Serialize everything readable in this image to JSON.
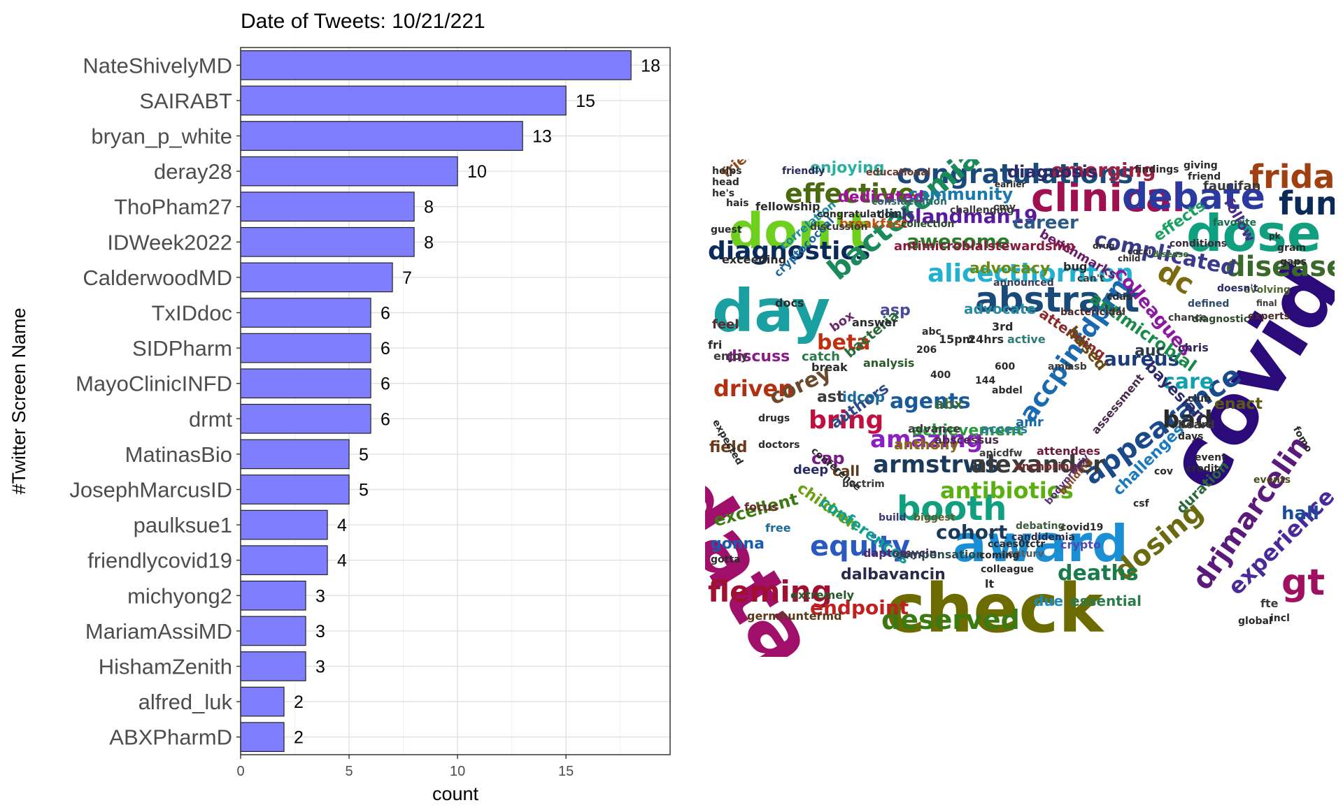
{
  "chart_data": [
    {
      "type": "bar",
      "orientation": "horizontal",
      "title": "Date of Tweets: 10/21/221",
      "xlabel": "count",
      "ylabel": "#Twitter Screen Name",
      "xlim": [
        0,
        19.8
      ],
      "xticks": [
        0,
        5,
        10,
        15
      ],
      "grid": true,
      "bar_color": "#7777ff",
      "categories": [
        "NateShivelyMD",
        "SAIRABT",
        "bryan_p_white",
        "deray28",
        "ThoPham27",
        "IDWeek2022",
        "CalderwoodMD",
        "TxIDdoc",
        "SIDPharm",
        "MayoClinicINFD",
        "drmt",
        "MatinasBio",
        "JosephMarcusID",
        "paulksue1",
        "friendlycovid19",
        "michyong2",
        "MariamAssiMD",
        "HishamZenith",
        "alfred_luk",
        "ABXPharmD"
      ],
      "values": [
        18,
        15,
        13,
        10,
        8,
        8,
        7,
        6,
        6,
        6,
        6,
        5,
        5,
        4,
        4,
        3,
        3,
        3,
        2,
        2
      ]
    },
    {
      "type": "wordcloud",
      "words": [
        {
          "text": "data",
          "color": "#a0106a"
        },
        {
          "text": "covid",
          "color": "#2b0a7a"
        },
        {
          "text": "check",
          "color": "#6b6b00"
        },
        {
          "text": "award",
          "color": "#1a8fd6"
        },
        {
          "text": "day",
          "color": "#1aa0a0"
        },
        {
          "text": "don't",
          "color": "#6fcf1f"
        },
        {
          "text": "dose",
          "color": "#10a080"
        },
        {
          "text": "clinical",
          "color": "#a01050"
        },
        {
          "text": "debate",
          "color": "#2a3aa0"
        },
        {
          "text": "congratulations",
          "color": "#1a4a7a"
        },
        {
          "text": "friday",
          "color": "#a04010"
        },
        {
          "text": "fun",
          "color": "#0a2a5a"
        },
        {
          "text": "diagnostics",
          "color": "#0a2a5a"
        },
        {
          "text": "bacteremia",
          "color": "#1a8a5a"
        },
        {
          "text": "abstract",
          "color": "#1a4a7a"
        },
        {
          "text": "alicecthornton",
          "color": "#20b0d0"
        },
        {
          "text": "disease",
          "color": "#3a6a2a"
        },
        {
          "text": "effective",
          "color": "#4a6a10"
        },
        {
          "text": "booth",
          "color": "#10a080"
        },
        {
          "text": "equity",
          "color": "#2a5ac0"
        },
        {
          "text": "fleming",
          "color": "#a01030"
        },
        {
          "text": "deserved",
          "color": "#3a7a10"
        },
        {
          "text": "appearance",
          "color": "#1a4a8a"
        },
        {
          "text": "dosing",
          "color": "#6a6a10"
        },
        {
          "text": "drjmarcelin",
          "color": "#5a1a7a"
        },
        {
          "text": "gt",
          "color": "#a01060"
        },
        {
          "text": "experience",
          "color": "#4a2a9a"
        },
        {
          "text": "accpinfdprn",
          "color": "#1a6ab0"
        },
        {
          "text": "armstrws",
          "color": "#1a3a5a"
        },
        {
          "text": "alexander",
          "color": "#3a3a3a"
        },
        {
          "text": "antibiotics",
          "color": "#5ab010"
        },
        {
          "text": "amazing",
          "color": "#8a20c0"
        },
        {
          "text": "bring",
          "color": "#c01040"
        },
        {
          "text": "agents",
          "color": "#1a5a9a"
        },
        {
          "text": "driven",
          "color": "#b03010"
        },
        {
          "text": "corey",
          "color": "#6a4a2a"
        },
        {
          "text": "cohort",
          "color": "#1a3a5a"
        },
        {
          "text": "deaths",
          "color": "#1a7a4a"
        },
        {
          "text": "endpoint",
          "color": "#c02020"
        },
        {
          "text": "bad",
          "color": "#2a2a2a"
        },
        {
          "text": "care",
          "color": "#10a0b0"
        },
        {
          "text": "aureus",
          "color": "#1a3a7a"
        },
        {
          "text": "emerging",
          "color": "#a02040"
        },
        {
          "text": "blandman19",
          "color": "#5a1aa0"
        },
        {
          "text": "awesome",
          "color": "#2a7a2a"
        },
        {
          "text": "complicated",
          "color": "#3a3a8a"
        },
        {
          "text": "beta",
          "color": "#c03010"
        },
        {
          "text": "dc",
          "color": "#7a6a10"
        },
        {
          "text": "career",
          "color": "#2a5a8a"
        },
        {
          "text": "colleagues",
          "color": "#8a1aa0"
        },
        {
          "text": "community",
          "color": "#1a7ab0"
        },
        {
          "text": "diagnosis",
          "color": "#2a2a6a"
        },
        {
          "text": "dedicated",
          "color": "#a010a0"
        },
        {
          "text": "enjoying",
          "color": "#2ab0a0"
        },
        {
          "text": "antimicrobial",
          "color": "#1a8a4a"
        },
        {
          "text": "advocacy",
          "color": "#6a8a10"
        },
        {
          "text": "achievement",
          "color": "#2a9a3a"
        },
        {
          "text": "bayesian",
          "color": "#2a2a6a"
        },
        {
          "text": "authors",
          "color": "#2a4a8a"
        },
        {
          "text": "children",
          "color": "#6aa010"
        },
        {
          "text": "conferences",
          "color": "#10a090"
        },
        {
          "text": "dalbavancin",
          "color": "#2a2a4a"
        },
        {
          "text": "excellent",
          "color": "#3a7a10"
        },
        {
          "text": "gonna",
          "color": "#1a5ab0"
        },
        {
          "text": "hall",
          "color": "#1a4a9a"
        },
        {
          "text": "challenges",
          "color": "#1a7ac0"
        },
        {
          "text": "duration",
          "color": "#2a6a3a"
        },
        {
          "text": "essential",
          "color": "#2a7a4a"
        },
        {
          "text": "due",
          "color": "#1a8ac0"
        },
        {
          "text": "field",
          "color": "#6a3a1a"
        },
        {
          "text": "cap",
          "color": "#7a1a8a"
        },
        {
          "text": "call",
          "color": "#5a3a1a"
        },
        {
          "text": "anthony",
          "color": "#8a6a10"
        },
        {
          "text": "asp",
          "color": "#4a4a9a"
        },
        {
          "text": "advocate",
          "color": "#2a8aa0"
        },
        {
          "text": "attending",
          "color": "#8a2a2a"
        },
        {
          "text": "based",
          "color": "#6a4a10"
        },
        {
          "text": "effects",
          "color": "#1aa060"
        },
        {
          "text": "discuss",
          "color": "#8a1a8a"
        },
        {
          "text": "ast",
          "color": "#3a3a3a"
        },
        {
          "text": "idcop",
          "color": "#1a6a9a"
        },
        {
          "text": "abx",
          "color": "#3a6a3a"
        },
        {
          "text": "enact",
          "color": "#5a5a10"
        },
        {
          "text": "friends",
          "color": "#8a4a1a"
        },
        {
          "text": "fellowship",
          "color": "#2a2a2a"
        },
        {
          "text": "breakfast",
          "color": "#c05010"
        },
        {
          "text": "clinic",
          "color": "#1a4a5a"
        },
        {
          "text": "benchmarks",
          "color": "#6a1a6a"
        },
        {
          "text": "antimicrobialstewardship",
          "color": "#8a1a3a"
        },
        {
          "text": "faucifan",
          "color": "#3a3a3a"
        },
        {
          "text": "follow",
          "color": "#4a2a8a"
        },
        {
          "text": "favorite",
          "color": "#1a6a4a"
        },
        {
          "text": "crypto",
          "color": "#4a4ab0"
        },
        {
          "text": "covid19",
          "color": "#2a2a2a"
        },
        {
          "text": "centurv",
          "color": "#5a5a5a"
        },
        {
          "text": "candidemia",
          "color": "#2a2a4a"
        },
        {
          "text": "debating",
          "color": "#3a5a3a"
        },
        {
          "text": "germhuntermd",
          "color": "#5a3a1a"
        },
        {
          "text": "extremely",
          "color": "#2a5a2a"
        },
        {
          "text": "daptomycin",
          "color": "#4a2a6a"
        },
        {
          "text": "compensation",
          "color": "#2a4a4a"
        },
        {
          "text": "biggest",
          "color": "#5a5a2a"
        },
        {
          "text": "build",
          "color": "#3a3a7a"
        },
        {
          "text": "free",
          "color": "#1a6a9a"
        },
        {
          "text": "focus",
          "color": "#6a2a2a"
        },
        {
          "text": "deep",
          "color": "#2a2a6a"
        },
        {
          "text": "access",
          "color": "#2a7a9a"
        },
        {
          "text": "abscessus",
          "color": "#4a2a4a"
        },
        {
          "text": "advance",
          "color": "#3a3a3a"
        },
        {
          "text": "bactrim",
          "color": "#3a3a3a"
        },
        {
          "text": "attendees",
          "color": "#6a1a3a"
        },
        {
          "text": "anchoring",
          "color": "#7a2a2a"
        },
        {
          "text": "amr",
          "color": "#1a6aa0"
        },
        {
          "text": "apicdfw",
          "color": "#3a3a3a"
        },
        {
          "text": "bodyprohiv",
          "color": "#5a2a7a"
        },
        {
          "text": "building",
          "color": "#8a4a2a"
        },
        {
          "text": "assessment",
          "color": "#4a2a4a"
        },
        {
          "text": "chris",
          "color": "#2a2a5a"
        },
        {
          "text": "auc",
          "color": "#2a3a4a"
        },
        {
          "text": "club",
          "color": "#2a2a2a"
        },
        {
          "text": "board",
          "color": "#3a3a3a"
        },
        {
          "text": "fte",
          "color": "#3a3a3a"
        },
        {
          "text": "events",
          "color": "#4a4a1a"
        },
        {
          "text": "diagnostic",
          "color": "#2a4a2a"
        },
        {
          "text": "experts",
          "color": "#4a2a2a"
        },
        {
          "text": "disease",
          "color": "#3a6a2a"
        },
        {
          "text": "defined",
          "color": "#2a4a6a"
        },
        {
          "text": "evolving",
          "color": "#4a6a2a"
        },
        {
          "text": "doesn't",
          "color": "#2a2a6a"
        },
        {
          "text": "final",
          "color": "#3a3a3a"
        },
        {
          "text": "conditions",
          "color": "#3a2a3a"
        },
        {
          "text": "announced",
          "color": "#3a3a5a"
        },
        {
          "text": "bug",
          "color": "#2a2a2a"
        },
        {
          "text": "can't",
          "color": "#3a3a3a"
        },
        {
          "text": "bactericidal",
          "color": "#4a2a2a"
        },
        {
          "text": "chance",
          "color": "#3a3a3a"
        },
        {
          "text": "exceeding",
          "color": "#2a2a2a"
        },
        {
          "text": "correlation",
          "color": "#1a8aa0"
        },
        {
          "text": "cryptococcal",
          "color": "#1a6aa0"
        },
        {
          "text": "docs",
          "color": "#2a2a2a"
        },
        {
          "text": "feel",
          "color": "#5a2a2a"
        },
        {
          "text": "enjoy",
          "color": "#3a3a3a"
        },
        {
          "text": "fri",
          "color": "#2a2a2a"
        },
        {
          "text": "break",
          "color": "#2a2a2a"
        },
        {
          "text": "catch",
          "color": "#2a7a4a"
        },
        {
          "text": "box",
          "color": "#6a2a6a"
        },
        {
          "text": "bacteria",
          "color": "#2a6a3a"
        },
        {
          "text": "analysis",
          "color": "#2a5a2a"
        },
        {
          "text": "answer",
          "color": "#2a2a2a"
        },
        {
          "text": "abc",
          "color": "#2a2a2a"
        },
        {
          "text": "15pm",
          "color": "#2a2a2a"
        },
        {
          "text": "24hrs",
          "color": "#2a2a2a"
        },
        {
          "text": "3rd",
          "color": "#2a2a2a"
        },
        {
          "text": "206",
          "color": "#2a2a2a"
        },
        {
          "text": "400",
          "color": "#2a2a2a"
        },
        {
          "text": "144",
          "color": "#2a2a2a"
        },
        {
          "text": "600",
          "color": "#2a2a2a"
        },
        {
          "text": "abdel",
          "color": "#2a2a2a"
        },
        {
          "text": "active",
          "color": "#2a7a7a"
        },
        {
          "text": "amb",
          "color": "#3a3a3a"
        },
        {
          "text": "asb",
          "color": "#3a3a3a"
        },
        {
          "text": "cdas",
          "color": "#2a2a2a"
        },
        {
          "text": "cmv",
          "color": "#3a3a3a"
        },
        {
          "text": "consideration",
          "color": "#2a6a6a"
        },
        {
          "text": "collection",
          "color": "#2a4a2a"
        },
        {
          "text": "challenging",
          "color": "#3a3a3a"
        },
        {
          "text": "discussion",
          "color": "#3a3a3a"
        },
        {
          "text": "congratulation",
          "color": "#2a2a2a"
        },
        {
          "text": "educational",
          "color": "#6a3a2a"
        },
        {
          "text": "friendly",
          "color": "#2a2a5a"
        },
        {
          "text": "helps",
          "color": "#2a2a2a"
        },
        {
          "text": "head",
          "color": "#2a2a2a"
        },
        {
          "text": "he's",
          "color": "#2a2a2a"
        },
        {
          "text": "hais",
          "color": "#2a2a2a"
        },
        {
          "text": "guest",
          "color": "#2a2a2a"
        },
        {
          "text": "earlier",
          "color": "#2a2a2a"
        },
        {
          "text": "giving",
          "color": "#2a2a2a"
        },
        {
          "text": "friend",
          "color": "#2a2a2a"
        },
        {
          "text": "findings",
          "color": "#2a2a2a"
        },
        {
          "text": "gaps",
          "color": "#2a2a2a"
        },
        {
          "text": "gram",
          "color": "#2a2a2a"
        },
        {
          "text": "pk",
          "color": "#2a2a2a"
        },
        {
          "text": "drug",
          "color": "#2a2a2a"
        },
        {
          "text": "child",
          "color": "#2a2a2a"
        },
        {
          "text": "cocci",
          "color": "#2a2a2a"
        },
        {
          "text": "days",
          "color": "#2a2a2a"
        },
        {
          "text": "event",
          "color": "#2a2a2a"
        },
        {
          "text": "credit",
          "color": "#2a2a2a"
        },
        {
          "text": "cov",
          "color": "#2a2a2a"
        },
        {
          "text": "csf",
          "color": "#2a2a2a"
        },
        {
          "text": "fomo",
          "color": "#2a2a2a"
        },
        {
          "text": "expected",
          "color": "#2a2a2a"
        },
        {
          "text": "drugs",
          "color": "#2a2a2a"
        },
        {
          "text": "doctors",
          "color": "#2a2a2a"
        },
        {
          "text": "gotta",
          "color": "#2a2a2a"
        },
        {
          "text": "global",
          "color": "#2a2a2a"
        },
        {
          "text": "incl",
          "color": "#2a2a2a"
        },
        {
          "text": "colleague",
          "color": "#2a2a2a"
        },
        {
          "text": "coming",
          "color": "#2a2a2a"
        },
        {
          "text": "ccaes0tctr",
          "color": "#2a2a2a"
        },
        {
          "text": "conference",
          "color": "#2a2a2a"
        },
        {
          "text": "lt",
          "color": "#2a2a2a"
        }
      ]
    }
  ]
}
